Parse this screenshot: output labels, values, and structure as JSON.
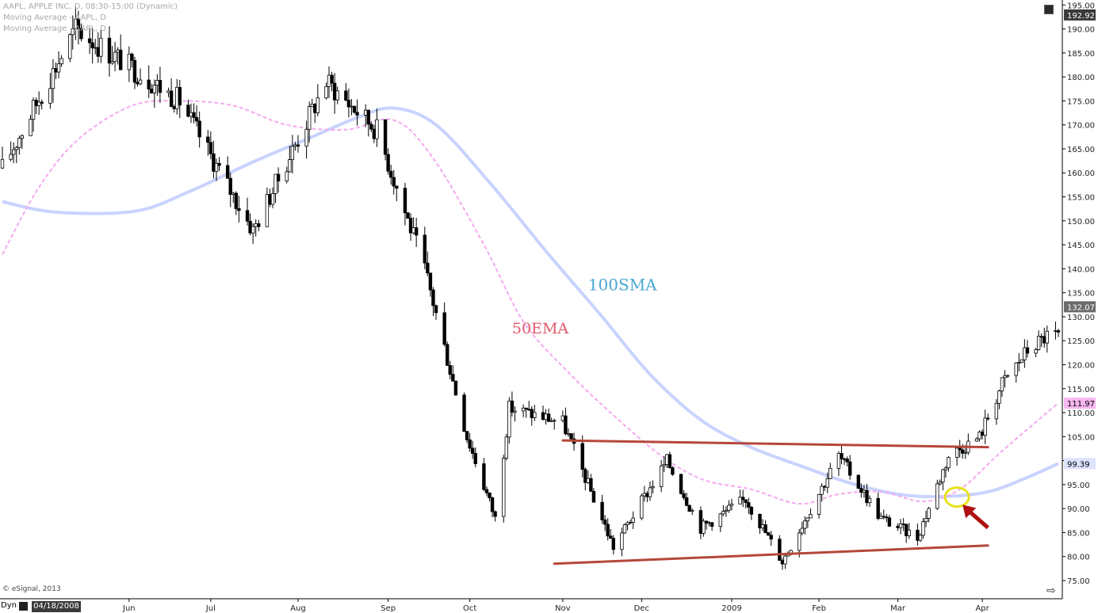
{
  "header": {
    "line1": "AAPL, APPLE INC, D, 08:30-15:00 (Dynamic)",
    "line2": "Moving Average - AAPL, D",
    "line3": "Moving Average - AAPL, D"
  },
  "footer": {
    "copyright": "© eSignal, 2013",
    "dyn_label": "Dyn",
    "date": "04/18/2008"
  },
  "icons": {
    "chart_corner": "window-restore-icon",
    "nav": "arrow-right-icon",
    "dyn": "dyn-mode-icon"
  },
  "colors": {
    "candle": "#000000",
    "sma100": "#c9d3ff",
    "ema50": "#f5a8f0",
    "trendline": "#b5473a",
    "circle": "#e8e21c",
    "arrow": "#b01010",
    "label_100sma": "#4aa7cf",
    "label_50ema": "#e0586a"
  },
  "chart_data": {
    "type": "candlestick",
    "title": "AAPL, APPLE INC, D, 08:30-15:00 (Dynamic)",
    "ylim": [
      72,
      196
    ],
    "yticks": [
      75,
      80,
      85,
      90,
      95,
      100,
      105,
      110,
      115,
      120,
      125,
      130,
      135,
      140,
      145,
      150,
      155,
      160,
      165,
      170,
      175,
      180,
      185,
      190,
      195
    ],
    "x_labels": [
      "Jun",
      "Jul",
      "Aug",
      "Sep",
      "Oct",
      "Nov",
      "Dec",
      "2009",
      "Feb",
      "Mar",
      "Apr"
    ],
    "price_tags": [
      {
        "value": 192.92,
        "label": "192.92",
        "bg": "#3a3a3a",
        "fg": "#ffffff"
      },
      {
        "value": 132.07,
        "label": "132.07",
        "bg": "#6b6b6b",
        "fg": "#ffffff"
      },
      {
        "value": 111.97,
        "label": "111.97",
        "bg": "#f6b6ef",
        "fg": "#000000"
      },
      {
        "value": 99.39,
        "label": "99.39",
        "bg": "#dde3ff",
        "fg": "#000000"
      }
    ],
    "annotations": [
      {
        "text": "100SMA"
      },
      {
        "text": "50EMA"
      }
    ],
    "trendlines": [
      {
        "name": "resistance",
        "from": {
          "date": "2008-11-03",
          "value": 104.2
        },
        "to": {
          "date": "2009-04-03",
          "value": 102.8
        }
      },
      {
        "name": "support",
        "from": {
          "date": "2008-10-31",
          "value": 78.5
        },
        "to": {
          "date": "2009-04-03",
          "value": 82.3
        }
      }
    ],
    "key_prices": [
      {
        "date": "2008-04-18",
        "value": 161
      },
      {
        "date": "2008-05-14",
        "value": 190
      },
      {
        "date": "2008-06-20",
        "value": 175
      },
      {
        "date": "2008-07-16",
        "value": 148
      },
      {
        "date": "2008-08-11",
        "value": 179
      },
      {
        "date": "2008-08-29",
        "value": 169
      },
      {
        "date": "2008-09-15",
        "value": 140
      },
      {
        "date": "2008-09-30",
        "value": 105
      },
      {
        "date": "2008-10-10",
        "value": 88
      },
      {
        "date": "2008-10-15",
        "value": 111
      },
      {
        "date": "2008-11-03",
        "value": 108
      },
      {
        "date": "2008-11-21",
        "value": 82
      },
      {
        "date": "2008-12-10",
        "value": 100
      },
      {
        "date": "2008-12-22",
        "value": 86
      },
      {
        "date": "2009-01-07",
        "value": 92
      },
      {
        "date": "2009-01-20",
        "value": 79
      },
      {
        "date": "2009-02-09",
        "value": 101
      },
      {
        "date": "2009-02-24",
        "value": 88
      },
      {
        "date": "2009-03-09",
        "value": 84
      },
      {
        "date": "2009-03-20",
        "value": 101
      },
      {
        "date": "2009-03-31",
        "value": 105
      },
      {
        "date": "2009-04-08",
        "value": 116
      },
      {
        "date": "2009-04-17",
        "value": 123
      },
      {
        "date": "2009-04-24",
        "value": 126
      }
    ],
    "sma100": [
      {
        "date": "2008-04-18",
        "value": 154
      },
      {
        "date": "2008-05-07",
        "value": 151.8
      },
      {
        "date": "2008-06-04",
        "value": 152
      },
      {
        "date": "2008-06-23",
        "value": 156
      },
      {
        "date": "2008-07-15",
        "value": 162
      },
      {
        "date": "2008-08-04",
        "value": 167
      },
      {
        "date": "2008-08-22",
        "value": 171.5
      },
      {
        "date": "2008-09-04",
        "value": 173.5
      },
      {
        "date": "2008-09-19",
        "value": 170
      },
      {
        "date": "2008-10-08",
        "value": 158
      },
      {
        "date": "2008-10-29",
        "value": 143
      },
      {
        "date": "2008-11-17",
        "value": 130
      },
      {
        "date": "2008-12-04",
        "value": 118
      },
      {
        "date": "2008-12-22",
        "value": 108.5
      },
      {
        "date": "2009-01-08",
        "value": 103
      },
      {
        "date": "2009-01-26",
        "value": 99
      },
      {
        "date": "2009-02-12",
        "value": 95.5
      },
      {
        "date": "2009-03-02",
        "value": 93
      },
      {
        "date": "2009-03-18",
        "value": 92.5
      },
      {
        "date": "2009-04-03",
        "value": 93.5
      },
      {
        "date": "2009-04-17",
        "value": 96.5
      },
      {
        "date": "2009-04-28",
        "value": 99.4
      }
    ],
    "ema50": [
      {
        "date": "2008-04-18",
        "value": 143
      },
      {
        "date": "2008-05-01",
        "value": 157
      },
      {
        "date": "2008-05-15",
        "value": 167
      },
      {
        "date": "2008-06-03",
        "value": 174
      },
      {
        "date": "2008-06-20",
        "value": 175
      },
      {
        "date": "2008-07-09",
        "value": 174
      },
      {
        "date": "2008-07-28",
        "value": 170
      },
      {
        "date": "2008-08-18",
        "value": 169
      },
      {
        "date": "2008-09-04",
        "value": 171
      },
      {
        "date": "2008-09-18",
        "value": 163
      },
      {
        "date": "2008-10-06",
        "value": 145
      },
      {
        "date": "2008-10-20",
        "value": 129
      },
      {
        "date": "2008-11-04",
        "value": 119
      },
      {
        "date": "2008-11-20",
        "value": 110
      },
      {
        "date": "2008-12-08",
        "value": 101
      },
      {
        "date": "2008-12-23",
        "value": 96
      },
      {
        "date": "2009-01-09",
        "value": 94
      },
      {
        "date": "2009-01-26",
        "value": 91
      },
      {
        "date": "2009-02-09",
        "value": 93
      },
      {
        "date": "2009-02-24",
        "value": 93.5
      },
      {
        "date": "2009-03-11",
        "value": 91.5
      },
      {
        "date": "2009-03-24",
        "value": 94
      },
      {
        "date": "2009-04-08",
        "value": 102
      },
      {
        "date": "2009-04-28",
        "value": 112
      }
    ]
  }
}
